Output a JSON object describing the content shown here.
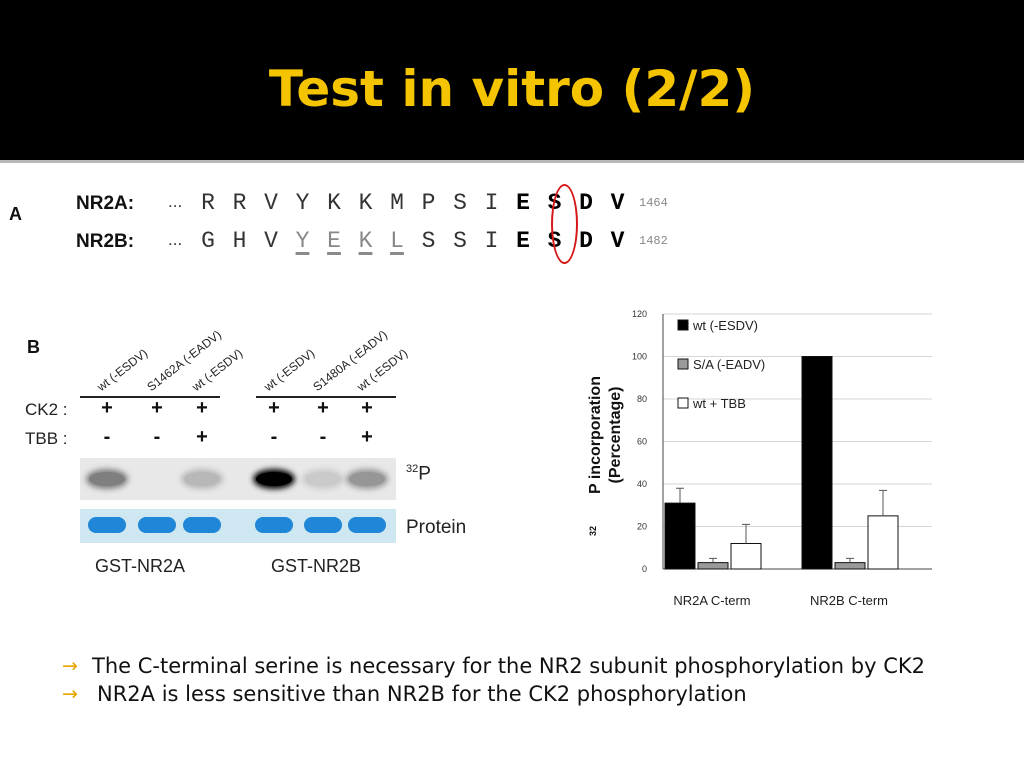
{
  "slide": {
    "title": "Test in vitro (2/2)"
  },
  "panel_a": {
    "letter": "A",
    "rows": [
      {
        "label": "NR2A:",
        "dots": "...",
        "residues": [
          "R",
          "R",
          "V",
          "Y",
          "K",
          "K",
          "M",
          "P",
          "S",
          "I",
          "E",
          "S",
          "D",
          "V"
        ],
        "bold_from": 10,
        "underlined": [],
        "number": "1464"
      },
      {
        "label": "NR2B:",
        "dots": "...",
        "residues": [
          "G",
          "H",
          "V",
          "Y",
          "E",
          "K",
          "L",
          "S",
          "S",
          "I",
          "E",
          "S",
          "D",
          "V"
        ],
        "bold_from": 10,
        "underlined": [
          3,
          4,
          5,
          6
        ],
        "number": "1482"
      }
    ]
  },
  "panel_b": {
    "letter": "B",
    "lane_labels": [
      "wt (-ESDV)",
      "S1462A (-EADV)",
      "wt (-ESDV)",
      "wt (-ESDV)",
      "S1480A (-EADV)",
      "wt (-ESDV)"
    ],
    "ck2_label": "CK2 :",
    "tbb_label": "TBB :",
    "ck2": [
      "+",
      "+",
      "+",
      "+",
      "+",
      "+"
    ],
    "tbb": [
      "-",
      "-",
      "+",
      "-",
      "-",
      "+"
    ],
    "p32_label_sup": "32",
    "p32_label": "P",
    "protein_label": "Protein",
    "p32_intensity": [
      0.45,
      0.0,
      0.2,
      1.0,
      0.12,
      0.35
    ],
    "constructs": [
      "GST-NR2A",
      "GST-NR2B"
    ]
  },
  "chart_data": {
    "type": "bar",
    "title": "",
    "xlabel": "",
    "ylabel_sup": "32",
    "ylabel": "P incorporation",
    "ylabel2": "(Percentage)",
    "ylim": [
      0,
      120
    ],
    "yticks": [
      "0",
      "20",
      "40",
      "60",
      "80",
      "100",
      "120"
    ],
    "categories": [
      "NR2A C-term",
      "NR2B C-term"
    ],
    "series": [
      {
        "name": "wt (-ESDV)",
        "values": [
          31,
          100
        ],
        "errors": [
          7,
          0
        ],
        "color": "#000000"
      },
      {
        "name": "S/A (-EADV)",
        "values": [
          3,
          3
        ],
        "errors": [
          2,
          2
        ],
        "color": "#9a9a9a"
      },
      {
        "name": "wt + TBB",
        "values": [
          12,
          25
        ],
        "errors": [
          9,
          12
        ],
        "color": "#ffffff"
      }
    ],
    "grid": true,
    "legend": "top-left"
  },
  "bullets": [
    "The C-terminal serine is necessary for the NR2 subunit phosphorylation by CK2",
    "NR2A is less sensitive than NR2B for the CK2 phosphorylation"
  ],
  "colors": {
    "title": "#f5c400",
    "title_bg": "#000000",
    "bullet_arrow": "#e8a400",
    "highlight_circle": "#d81818",
    "protein_band": "#1f86d8"
  }
}
